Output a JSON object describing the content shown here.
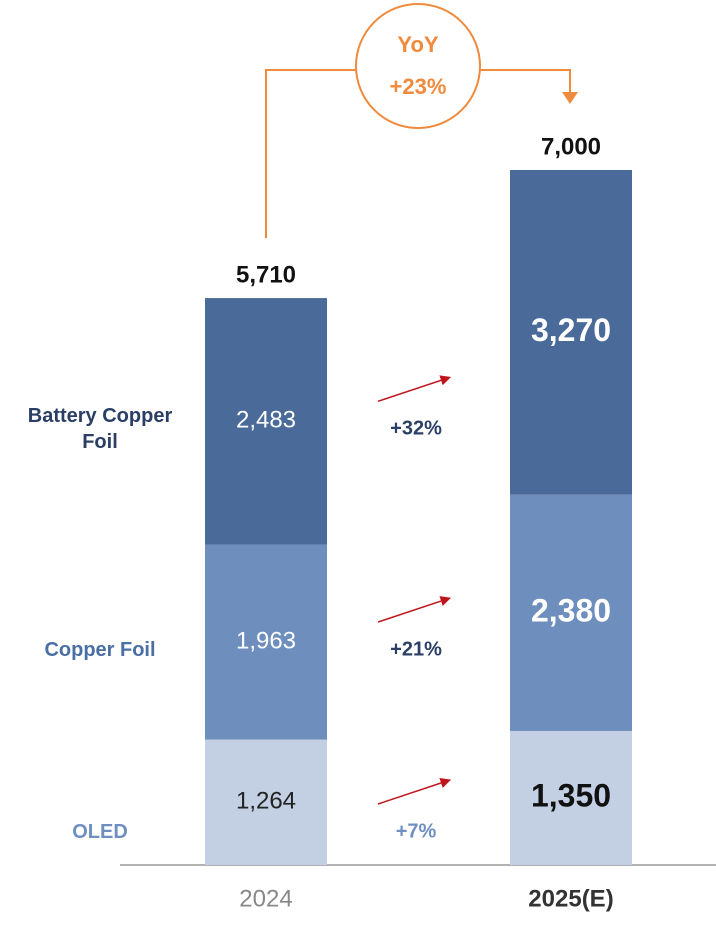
{
  "chart_data": {
    "type": "stacked-bar",
    "categories": [
      "2024",
      "2025(E)"
    ],
    "series": [
      {
        "name": "OLED",
        "color": "#c3cfe2",
        "text_color": "#6f8fc0",
        "values": [
          1264,
          1350
        ],
        "value_labels": [
          "1,264",
          "1,350"
        ],
        "change": "+7%"
      },
      {
        "name": "Copper Foil",
        "color": "#6e8fbd",
        "text_color": "#4a6fa5",
        "values": [
          1963,
          2380
        ],
        "value_labels": [
          "1,963",
          "2,380"
        ],
        "change": "+21%"
      },
      {
        "name": "Battery Copper Foil",
        "color": "#4a6a9a",
        "text_color": "#2b3f66",
        "values": [
          2483,
          3270
        ],
        "value_labels": [
          "2,483",
          "3,270"
        ],
        "change": "+32%"
      }
    ],
    "totals": [
      5710,
      7000
    ],
    "total_labels": [
      "5,710",
      "7,000"
    ],
    "yoy": {
      "label": "YoY",
      "value": "+23%",
      "color": "#f08a3c"
    },
    "arrow_color": "#c0141c"
  }
}
